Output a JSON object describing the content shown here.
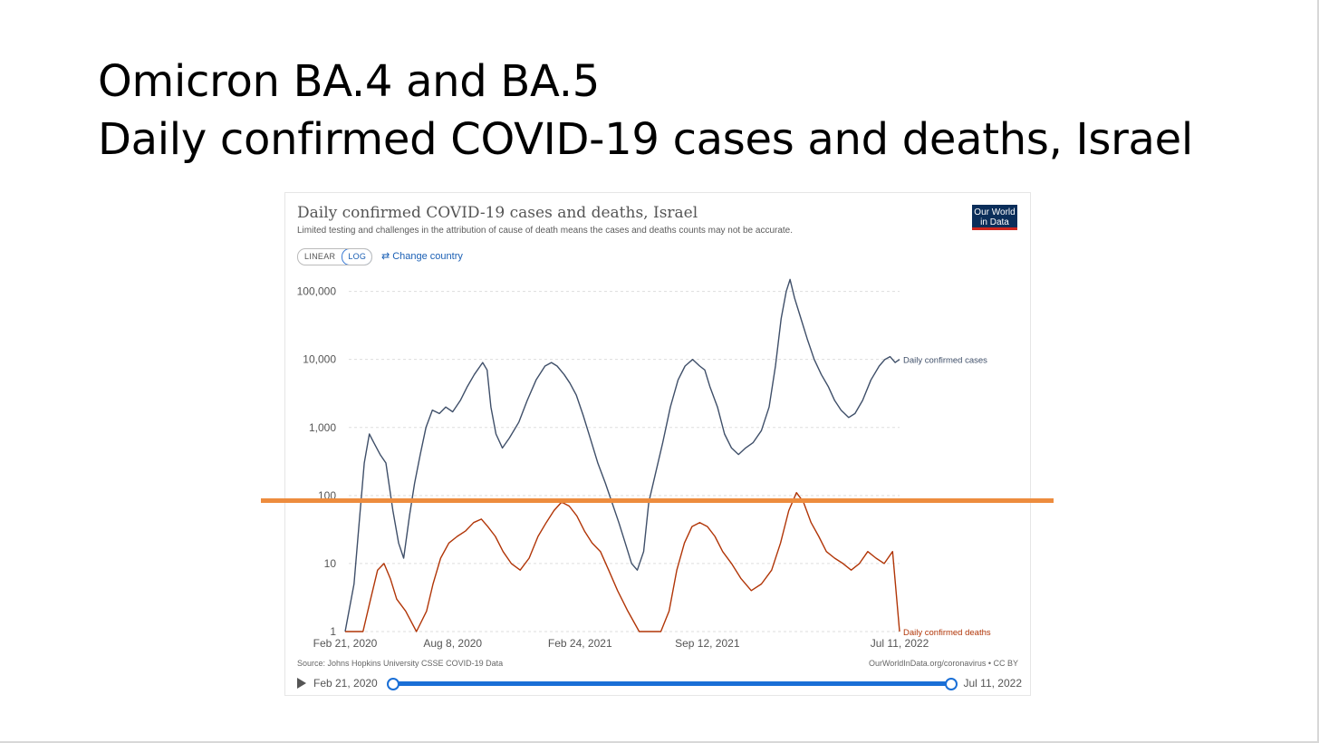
{
  "slide": {
    "title_line1": "Omicron BA.4 and BA.5",
    "title_line2": "Daily confirmed COVID-19 cases and deaths, Israel"
  },
  "chart": {
    "title": "Daily confirmed COVID-19 cases and deaths, Israel",
    "subtitle": "Limited testing and challenges in the attribution of cause of death means the cases and deaths counts may not be accurate.",
    "logo_line1": "Our World",
    "logo_line2": "in Data",
    "toggle_linear": "LINEAR",
    "toggle_log": "LOG",
    "change_country": "Change country",
    "source": "Source: Johns Hopkins University CSSE COVID-19 Data",
    "credit": "OurWorldInData.org/coronavirus • CC BY",
    "timeline_start": "Feb 21, 2020",
    "timeline_end": "Jul 11, 2022"
  },
  "colors": {
    "cases": "#3f4f69",
    "deaths": "#b13507",
    "highlight": "#ed8c3e",
    "accent": "#1a6fd6"
  },
  "icons": {
    "play": "play-icon",
    "swap": "swap-arrows-icon"
  },
  "chart_data": {
    "type": "line",
    "yscale": "log",
    "ylim": [
      1,
      200000
    ],
    "ytick_values": [
      1,
      10,
      100,
      1000,
      10000,
      100000
    ],
    "yticks": [
      "1",
      "10",
      "100",
      "1,000",
      "10,000",
      "100,000"
    ],
    "xlim": [
      "2020-02-21",
      "2022-07-11"
    ],
    "xtick_values": [
      "2020-02-21",
      "2020-08-08",
      "2021-02-24",
      "2021-09-12",
      "2022-07-11"
    ],
    "xticks": [
      "Feb 21, 2020",
      "Aug 8, 2020",
      "Feb 24, 2021",
      "Sep 12, 2021",
      "Jul 11, 2022"
    ],
    "grid": true,
    "reference_line": {
      "y": 100
    },
    "series": [
      {
        "name": "Daily confirmed cases",
        "x": [
          "2020-02-21",
          "2020-03-06",
          "2020-03-14",
          "2020-03-22",
          "2020-03-30",
          "2020-04-06",
          "2020-04-16",
          "2020-04-25",
          "2020-05-06",
          "2020-05-15",
          "2020-05-23",
          "2020-06-01",
          "2020-06-09",
          "2020-06-18",
          "2020-06-27",
          "2020-07-07",
          "2020-07-18",
          "2020-07-28",
          "2020-08-08",
          "2020-08-20",
          "2020-08-31",
          "2020-09-11",
          "2020-09-24",
          "2020-10-01",
          "2020-10-07",
          "2020-10-15",
          "2020-10-25",
          "2020-11-05",
          "2020-11-20",
          "2020-12-03",
          "2020-12-17",
          "2020-12-31",
          "2021-01-10",
          "2021-01-19",
          "2021-01-30",
          "2021-02-08",
          "2021-02-18",
          "2021-03-01",
          "2021-03-12",
          "2021-03-24",
          "2021-04-05",
          "2021-04-15",
          "2021-04-26",
          "2021-05-06",
          "2021-05-16",
          "2021-05-25",
          "2021-06-04",
          "2021-06-12",
          "2021-06-22",
          "2021-07-04",
          "2021-07-16",
          "2021-07-28",
          "2021-08-08",
          "2021-08-20",
          "2021-08-31",
          "2021-09-08",
          "2021-09-16",
          "2021-09-28",
          "2021-10-09",
          "2021-10-20",
          "2021-10-31",
          "2021-11-11",
          "2021-11-23",
          "2021-12-06",
          "2021-12-18",
          "2021-12-28",
          "2022-01-06",
          "2022-01-14",
          "2022-01-20",
          "2022-01-27",
          "2022-02-06",
          "2022-02-16",
          "2022-02-27",
          "2022-03-10",
          "2022-03-21",
          "2022-03-31",
          "2022-04-10",
          "2022-04-22",
          "2022-05-02",
          "2022-05-14",
          "2022-05-27",
          "2022-06-09",
          "2022-06-18",
          "2022-06-26",
          "2022-07-04",
          "2022-07-11"
        ],
        "values": [
          1,
          5,
          40,
          300,
          800,
          600,
          400,
          300,
          60,
          20,
          12,
          50,
          150,
          400,
          1000,
          1800,
          1600,
          2000,
          1700,
          2500,
          4000,
          6000,
          9000,
          7000,
          2000,
          800,
          500,
          700,
          1200,
          2500,
          5000,
          8000,
          9000,
          8000,
          6000,
          4500,
          3000,
          1500,
          700,
          300,
          150,
          80,
          40,
          20,
          10,
          8,
          15,
          80,
          200,
          600,
          2000,
          5000,
          8000,
          10000,
          8000,
          7000,
          4000,
          2000,
          800,
          500,
          400,
          500,
          600,
          900,
          2000,
          8000,
          40000,
          100000,
          150000,
          80000,
          40000,
          20000,
          10000,
          6000,
          4000,
          2500,
          1800,
          1400,
          1600,
          2500,
          5000,
          8000,
          10000,
          11000,
          9000,
          10000
        ]
      },
      {
        "name": "Daily confirmed deaths",
        "x": [
          "2020-02-21",
          "2020-03-20",
          "2020-04-01",
          "2020-04-12",
          "2020-04-22",
          "2020-05-02",
          "2020-05-12",
          "2020-05-26",
          "2020-06-12",
          "2020-06-28",
          "2020-07-08",
          "2020-07-20",
          "2020-08-02",
          "2020-08-15",
          "2020-08-28",
          "2020-09-10",
          "2020-09-22",
          "2020-10-02",
          "2020-10-14",
          "2020-10-26",
          "2020-11-08",
          "2020-11-22",
          "2020-12-06",
          "2020-12-20",
          "2021-01-02",
          "2021-01-14",
          "2021-01-26",
          "2021-02-07",
          "2021-02-19",
          "2021-03-03",
          "2021-03-15",
          "2021-03-28",
          "2021-04-10",
          "2021-04-24",
          "2021-05-10",
          "2021-05-28",
          "2021-06-15",
          "2021-07-01",
          "2021-07-14",
          "2021-07-26",
          "2021-08-07",
          "2021-08-19",
          "2021-08-31",
          "2021-09-12",
          "2021-09-24",
          "2021-10-06",
          "2021-10-20",
          "2021-11-04",
          "2021-11-20",
          "2021-12-06",
          "2021-12-22",
          "2022-01-05",
          "2022-01-18",
          "2022-01-30",
          "2022-02-10",
          "2022-02-22",
          "2022-03-06",
          "2022-03-18",
          "2022-03-31",
          "2022-04-13",
          "2022-04-26",
          "2022-05-09",
          "2022-05-22",
          "2022-06-04",
          "2022-06-17",
          "2022-06-30",
          "2022-07-11"
        ],
        "values": [
          1,
          1,
          3,
          8,
          10,
          6,
          3,
          2,
          1,
          2,
          5,
          12,
          20,
          25,
          30,
          40,
          45,
          35,
          25,
          15,
          10,
          8,
          12,
          25,
          40,
          60,
          80,
          70,
          50,
          30,
          20,
          15,
          8,
          4,
          2,
          1,
          1,
          1,
          2,
          8,
          20,
          35,
          40,
          35,
          25,
          15,
          10,
          6,
          4,
          5,
          8,
          20,
          60,
          110,
          80,
          40,
          25,
          15,
          12,
          10,
          8,
          10,
          15,
          12,
          10,
          15,
          1
        ]
      }
    ]
  }
}
